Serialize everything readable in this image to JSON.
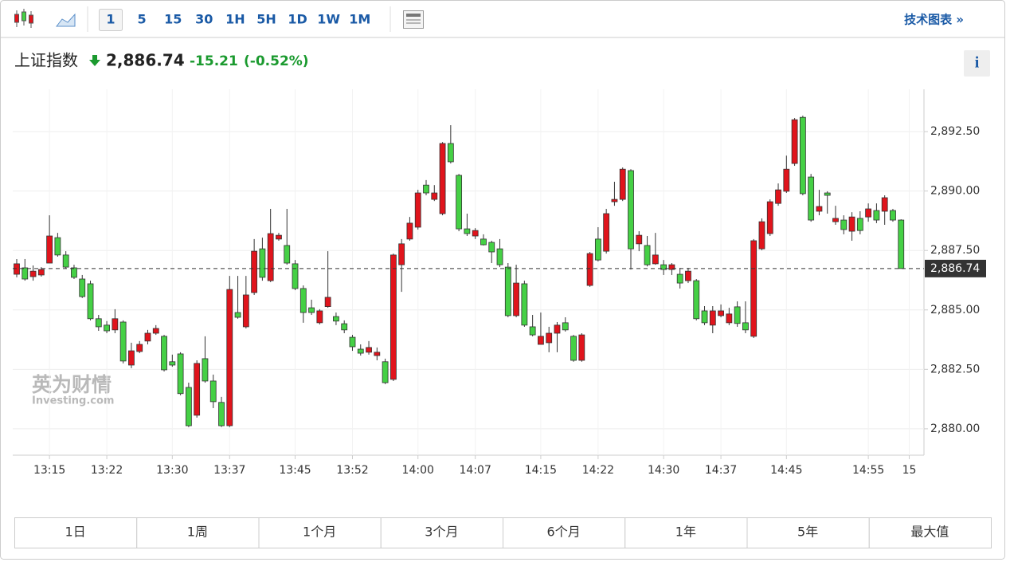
{
  "toolbar": {
    "intervals": [
      "1",
      "5",
      "15",
      "30",
      "1H",
      "5H",
      "1D",
      "1W",
      "1M"
    ],
    "link": "技术图表 »"
  },
  "header": {
    "name": "上证指数",
    "change": "-15.21",
    "change_pct": "(-0.52%)",
    "info": "i"
  },
  "watermark": {
    "brand": "英为财情",
    "site": "Investing.com"
  },
  "ranges": [
    "1日",
    "1周",
    "1个月",
    "3个月",
    "6个月",
    "1年",
    "5年",
    "最大值"
  ],
  "chart_data": {
    "type": "candlestick",
    "up_color": "#e0141c",
    "down_color": "#45d045",
    "grid": true,
    "categories": [
      null,
      null,
      null,
      null,
      "13:15",
      null,
      null,
      null,
      null,
      null,
      null,
      "13:22",
      null,
      null,
      null,
      null,
      null,
      null,
      null,
      "13:30",
      null,
      null,
      null,
      null,
      null,
      null,
      "13:37",
      null,
      null,
      null,
      null,
      null,
      null,
      null,
      "13:45",
      null,
      null,
      null,
      null,
      null,
      null,
      "13:52",
      null,
      null,
      null,
      null,
      null,
      null,
      null,
      "14:00",
      null,
      null,
      null,
      null,
      null,
      null,
      "14:07",
      null,
      null,
      null,
      null,
      null,
      null,
      null,
      "14:15",
      null,
      null,
      null,
      null,
      null,
      null,
      "14:22",
      null,
      null,
      null,
      null,
      null,
      null,
      null,
      "14:30",
      null,
      null,
      null,
      null,
      null,
      null,
      "14:37",
      null,
      null,
      null,
      null,
      null,
      null,
      null,
      "14:45",
      null,
      null,
      null,
      null,
      null,
      null,
      null,
      null,
      null,
      "14:55",
      null,
      null,
      null,
      null,
      "15"
    ],
    "open": [
      2886.5,
      2886.77,
      2886.4,
      2886.47,
      2886.97,
      2888.04,
      2887.31,
      2886.77,
      2886.3,
      2886.1,
      2884.63,
      2884.36,
      2884.16,
      2884.49,
      2882.68,
      2883.25,
      2883.69,
      2884.02,
      2883.89,
      2882.82,
      2883.15,
      2881.74,
      2880.57,
      2882.95,
      2882.01,
      2881.11,
      2880.13,
      2884.89,
      2884.29,
      2885.73,
      2887.57,
      2886.23,
      2887.98,
      2887.71,
      2886.94,
      2885.9,
      2885.09,
      2884.46,
      2885.14,
      2884.72,
      2884.42,
      2883.85,
      2883.35,
      2883.22,
      2883.08,
      2882.82,
      2882.08,
      2886.9,
      2887.98,
      2888.48,
      2890.25,
      2889.65,
      2889.05,
      2892.0,
      2890.66,
      2888.41,
      2888.11,
      2887.98,
      2887.84,
      2887.57,
      2886.8,
      2884.76,
      2886.1,
      2884.29,
      2883.55,
      2883.62,
      2884.02,
      2884.46,
      2883.89,
      2882.88,
      2886.03,
      2887.98,
      2887.47,
      2889.55,
      2889.65,
      2890.86,
      2887.78,
      2887.71,
      2886.94,
      2886.9,
      2886.7,
      2886.5,
      2886.23,
      2886.23,
      2884.96,
      2884.36,
      2884.76,
      2884.46,
      2885.13,
      2884.46,
      2883.89,
      2887.57,
      2888.21,
      2889.48,
      2889.99,
      2891.16,
      2893.1,
      2890.59,
      2889.15,
      2889.92,
      2888.71,
      2888.78,
      2888.31,
      2888.85,
      2888.91,
      2889.18,
      2889.15,
      2889.18,
      2888.78,
      null
    ],
    "close": [
      2886.94,
      2886.3,
      2886.63,
      2886.7,
      2888.11,
      2887.31,
      2886.8,
      2886.37,
      2885.56,
      2884.63,
      2884.29,
      2884.12,
      2884.63,
      2882.85,
      2883.28,
      2883.55,
      2884.02,
      2884.22,
      2882.48,
      2882.68,
      2881.48,
      2880.13,
      2882.75,
      2882.01,
      2881.14,
      2880.13,
      2885.86,
      2884.69,
      2885.63,
      2887.47,
      2886.37,
      2888.21,
      2888.14,
      2886.97,
      2885.9,
      2884.89,
      2884.89,
      2884.96,
      2885.53,
      2884.53,
      2884.16,
      2883.45,
      2883.18,
      2883.42,
      2883.22,
      2881.94,
      2887.31,
      2887.78,
      2888.65,
      2889.92,
      2889.92,
      2889.92,
      2892.0,
      2891.23,
      2888.41,
      2888.21,
      2888.34,
      2887.74,
      2887.44,
      2886.9,
      2884.76,
      2886.13,
      2884.36,
      2883.95,
      2883.89,
      2884.02,
      2884.36,
      2884.16,
      2882.88,
      2883.95,
      2887.37,
      2887.1,
      2889.05,
      2889.65,
      2890.92,
      2887.57,
      2888.14,
      2886.9,
      2887.31,
      2886.7,
      2886.9,
      2886.13,
      2886.63,
      2884.63,
      2884.46,
      2884.96,
      2884.96,
      2884.83,
      2884.43,
      2884.16,
      2887.91,
      2888.71,
      2889.55,
      2890.05,
      2890.92,
      2893.0,
      2889.89,
      2888.78,
      2889.35,
      2889.82,
      2888.85,
      2888.38,
      2888.91,
      2888.34,
      2889.25,
      2888.78,
      2889.72,
      2888.78,
      2886.74,
      null
    ],
    "high": [
      2887.14,
      2887.14,
      2886.87,
      2886.8,
      2888.98,
      2888.24,
      2887.47,
      2886.9,
      2886.47,
      2886.23,
      2884.79,
      2884.53,
      2885.03,
      2884.56,
      2883.62,
      2883.69,
      2884.16,
      2884.36,
      2883.95,
      2883.12,
      2883.22,
      2881.94,
      2882.88,
      2883.89,
      2882.28,
      2881.34,
      2886.43,
      2886.43,
      2886.43,
      2887.98,
      2888.04,
      2889.25,
      2888.24,
      2889.25,
      2887.1,
      2886.03,
      2885.43,
      2885.03,
      2887.47,
      2884.89,
      2884.56,
      2883.95,
      2883.55,
      2883.69,
      2883.42,
      2882.95,
      2887.37,
      2887.98,
      2888.91,
      2890.05,
      2890.46,
      2890.25,
      2892.06,
      2892.77,
      2890.72,
      2889.05,
      2888.44,
      2888.18,
      2887.91,
      2887.98,
      2886.97,
      2886.9,
      2886.23,
      2884.79,
      2884.89,
      2884.29,
      2884.49,
      2884.69,
      2883.95,
      2884.02,
      2887.44,
      2888.48,
      2889.25,
      2890.39,
      2890.99,
      2890.92,
      2888.31,
      2888.11,
      2888.24,
      2887.1,
      2886.97,
      2886.77,
      2886.77,
      2886.3,
      2885.16,
      2885.16,
      2885.23,
      2885.09,
      2885.36,
      2885.36,
      2887.98,
      2888.85,
      2889.65,
      2890.32,
      2891.49,
      2893.07,
      2893.17,
      2890.72,
      2890.05,
      2889.99,
      2889.38,
      2888.98,
      2889.11,
      2889.15,
      2889.48,
      2889.48,
      2889.82,
      2889.25,
      2888.81,
      null
    ],
    "low": [
      2886.37,
      2886.23,
      2886.23,
      2886.4,
      2886.97,
      2887.24,
      2886.74,
      2886.3,
      2885.5,
      2884.56,
      2884.12,
      2884.02,
      2884.02,
      2882.75,
      2882.55,
      2883.18,
      2883.55,
      2883.95,
      2882.41,
      2882.61,
      2881.41,
      2880.07,
      2880.47,
      2881.94,
      2880.87,
      2880.07,
      2880.07,
      2884.63,
      2884.22,
      2885.63,
      2886.23,
      2886.17,
      2887.91,
      2886.9,
      2885.83,
      2884.46,
      2884.79,
      2884.39,
      2885.09,
      2884.36,
      2884.02,
      2883.28,
      2883.08,
      2883.12,
      2882.88,
      2881.88,
      2882.01,
      2885.76,
      2887.91,
      2888.38,
      2889.82,
      2889.58,
      2888.98,
      2891.16,
      2888.31,
      2888.11,
      2887.98,
      2887.71,
      2886.97,
      2886.8,
      2884.69,
      2884.69,
      2884.29,
      2883.89,
      2883.55,
      2883.22,
      2883.22,
      2884.09,
      2882.82,
      2882.82,
      2885.97,
      2887.04,
      2887.37,
      2889.38,
      2889.58,
      2886.7,
      2887.47,
      2886.83,
      2886.9,
      2886.47,
      2886.47,
      2885.9,
      2886.13,
      2884.56,
      2884.36,
      2884.02,
      2884.69,
      2884.36,
      2884.29,
      2884.02,
      2883.82,
      2887.51,
      2888.11,
      2889.38,
      2889.92,
      2891.06,
      2889.82,
      2888.71,
      2888.98,
      2889.05,
      2888.58,
      2888.18,
      2887.91,
      2888.18,
      2888.71,
      2888.65,
      2888.58,
      2888.71,
      2886.74,
      null
    ],
    "ylim": [
      2878.89,
      2894.28
    ],
    "yticks": [
      {
        "value": 2880,
        "label": "2,880.00"
      },
      {
        "value": 2882.5,
        "label": "2,882.50"
      },
      {
        "value": 2885,
        "label": "2,885.00"
      },
      {
        "value": 2887.5,
        "label": "2,887.50"
      },
      {
        "value": 2890,
        "label": "2,890.00"
      },
      {
        "value": 2892.5,
        "label": "2,892.50"
      }
    ],
    "last_price": {
      "value": 2886.74,
      "label": "2,886.74"
    }
  }
}
